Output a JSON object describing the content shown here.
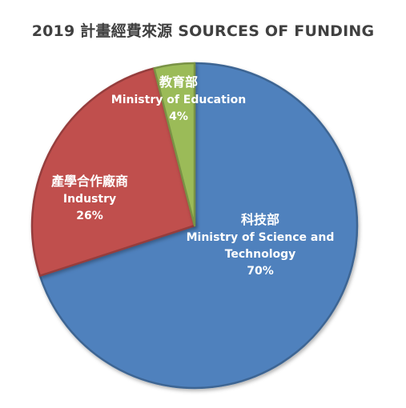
{
  "chart_data": {
    "type": "pie",
    "title": "2019 計畫經費來源 SOURCES OF FUNDING",
    "slices": [
      {
        "label_zh": "科技部",
        "label_en": "Ministry of Science and Technology",
        "value": 70,
        "value_label": "70%",
        "color": "#4F81BD"
      },
      {
        "label_zh": "產學合作廠商",
        "label_en": "Industry",
        "value": 26,
        "value_label": "26%",
        "color": "#C0504D"
      },
      {
        "label_zh": "教育部",
        "label_en": "Ministry of Education",
        "value": 4,
        "value_label": "4%",
        "color": "#9BBB59"
      }
    ],
    "legend": "none",
    "labels": "inside"
  }
}
